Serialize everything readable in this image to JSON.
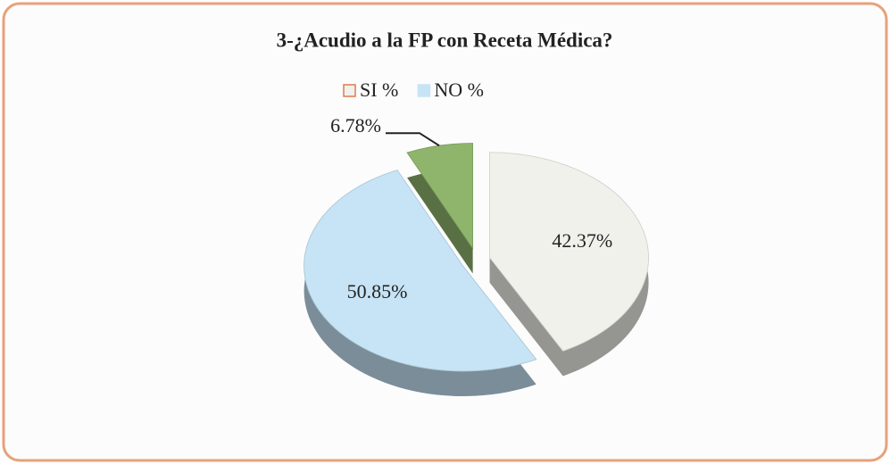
{
  "chart_data": {
    "type": "pie",
    "title": "3-¿Acudio a la FP con Receta Médica?",
    "categories": [
      "SI %",
      "NO %",
      null
    ],
    "values": [
      42.37,
      50.85,
      6.78
    ],
    "value_labels": [
      "42.37%",
      "50.85%",
      "6.78%"
    ],
    "colors": [
      "#f1f1ec",
      "#c6e4f5",
      "#8fb56d"
    ],
    "legend": "top"
  }
}
